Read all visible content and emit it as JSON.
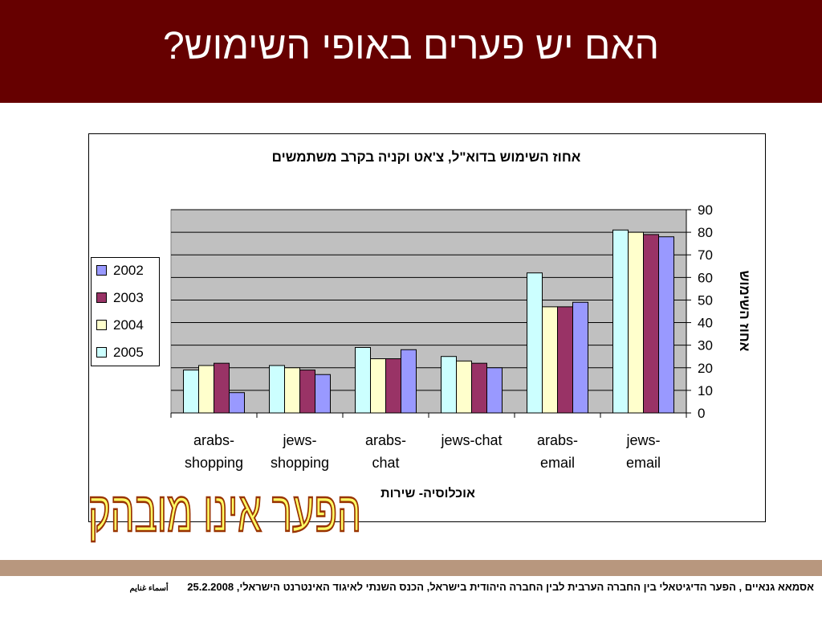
{
  "slide": {
    "title": "האם יש פערים באופי השימוש?",
    "overlay_text": "הפער אינו מובהק",
    "footer_main": "אסמאא גנאיים , הפער הדיגיטאלי בין החברה הערבית לבין החברה היהודית בישראל, הכנס השנתי לאיגוד האינטרנט הישראלי, 25.2.2008",
    "footer_name": "أسماء غنايم"
  },
  "colors": {
    "header_bg": "#660000",
    "plot_bg": "#c0c0c0",
    "footer_bar": "#b8977e",
    "s2002": "#9999ff",
    "s2003": "#993366",
    "s2004": "#ffffcc",
    "s2005": "#ccffff",
    "overlay_fill": "#ffff66",
    "overlay_stroke": "#993300"
  },
  "chart_data": {
    "type": "bar",
    "title": "אחוז השימוש בדוא\"ל, צ'אט וקניה בקרב משתמשים",
    "xlabel": "אוכלוסיה- שירות",
    "ylabel": "אחוז השימוש",
    "ylim": [
      0,
      90
    ],
    "yticks": [
      0,
      10,
      20,
      30,
      40,
      50,
      60,
      70,
      80,
      90
    ],
    "y_axis_side": "right",
    "grid": true,
    "legend_position": "left",
    "categories": [
      [
        "arabs-",
        "shopping"
      ],
      [
        "jews-",
        "shopping"
      ],
      [
        "arabs-",
        "chat"
      ],
      [
        "jews-chat"
      ],
      [
        "arabs-",
        "email"
      ],
      [
        "jews-",
        "email"
      ]
    ],
    "bar_order": [
      "2005",
      "2004",
      "2003",
      "2002"
    ],
    "series": [
      {
        "name": "2002",
        "color": "#9999ff",
        "values": [
          9,
          17,
          28,
          20,
          49,
          78
        ]
      },
      {
        "name": "2003",
        "color": "#993366",
        "values": [
          22,
          19,
          24,
          22,
          47,
          79
        ]
      },
      {
        "name": "2004",
        "color": "#ffffcc",
        "values": [
          21,
          20,
          24,
          23,
          47,
          80
        ]
      },
      {
        "name": "2005",
        "color": "#ccffff",
        "values": [
          19,
          21,
          29,
          25,
          62,
          81
        ]
      }
    ]
  }
}
